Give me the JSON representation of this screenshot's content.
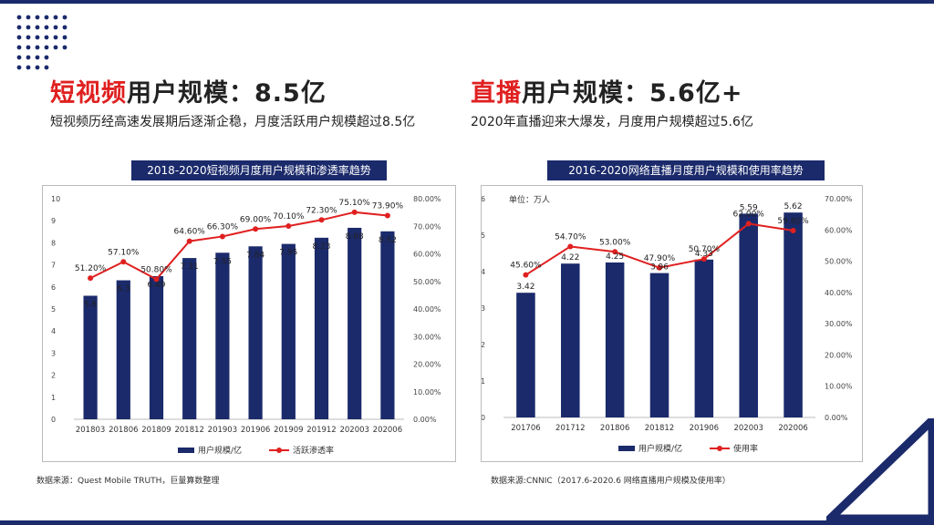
{
  "colors": {
    "bar": "#1b2a6b",
    "line": "#e02020",
    "accent": "#1b2a6b"
  },
  "left": {
    "title_red": "短视频",
    "title_dark": "用户规模：8.5亿",
    "subtitle": "短视频历经高速发展期后逐渐企稳，月度活跃用户规模超过8.5亿",
    "source": "数据来源：Quest Mobile TRUTH，巨量算数整理"
  },
  "right": {
    "title_red": "直播",
    "title_dark": "用户规模：5.6亿+",
    "subtitle": "2020年直播迎来大爆发，月度用户规模超过5.6亿",
    "source": "数据来源:CNNIC（2017.6-2020.6 网络直播用户规模及使用率）"
  },
  "chart_data": [
    {
      "type": "bar+line",
      "title": "2018-2020短视频月度用户规模和渗透率趋势",
      "unit_note": "",
      "categories": [
        "201803",
        "201806",
        "201809",
        "201812",
        "201903",
        "201906",
        "201909",
        "201912",
        "202003",
        "202006"
      ],
      "series": [
        {
          "name": "用户规模/亿",
          "type": "bar",
          "axis": "left",
          "values": [
            5.6,
            6.3,
            6.49,
            7.31,
            7.55,
            7.84,
            7.95,
            8.23,
            8.68,
            8.52
          ],
          "labels": [
            "5.6",
            "6.3",
            "6.49",
            "7.31",
            "7.55",
            "7.84",
            "7.95",
            "8.23",
            "8.68",
            "8.52"
          ]
        },
        {
          "name": "活跃渗透率",
          "type": "line",
          "axis": "right",
          "values": [
            51.2,
            57.1,
            50.8,
            64.6,
            66.3,
            69.0,
            70.1,
            72.3,
            75.1,
            73.9
          ],
          "labels": [
            "51.20%",
            "57.10%",
            "50.80%",
            "64.60%",
            "66.30%",
            "69.00%",
            "70.10%",
            "72.30%",
            "75.10%",
            "73.90%"
          ]
        }
      ],
      "y_left": {
        "min": 0,
        "max": 10,
        "ticks": [
          "0",
          "1",
          "2",
          "3",
          "4",
          "5",
          "6",
          "7",
          "8",
          "9",
          "10"
        ]
      },
      "y_right": {
        "min": 0,
        "max": 80,
        "ticks": [
          "0.00%",
          "10.00%",
          "20.00%",
          "30.00%",
          "40.00%",
          "50.00%",
          "60.00%",
          "70.00%",
          "80.00%"
        ]
      },
      "legend": [
        "用户规模/亿",
        "活跃渗透率"
      ]
    },
    {
      "type": "bar+line",
      "title": "2016-2020网络直播月度用户规模和使用率趋势",
      "unit_note": "单位：万人",
      "categories": [
        "201706",
        "201712",
        "201806",
        "201812",
        "201906",
        "202003",
        "202006"
      ],
      "series": [
        {
          "name": "用户规模/亿",
          "type": "bar",
          "axis": "left",
          "values": [
            3.42,
            4.22,
            4.25,
            3.96,
            4.33,
            5.59,
            5.62
          ],
          "labels": [
            "3.42",
            "4.22",
            "4.25",
            "3.96",
            "4.33",
            "5.59",
            "5.62"
          ]
        },
        {
          "name": "使用率",
          "type": "line",
          "axis": "right",
          "values": [
            45.6,
            54.7,
            53.0,
            47.9,
            50.7,
            62.0,
            59.8
          ],
          "labels": [
            "45.60%",
            "54.70%",
            "53.00%",
            "47.90%",
            "50.70%",
            "62.00%",
            "59.80%"
          ]
        }
      ],
      "y_left": {
        "min": 0,
        "max": 6,
        "ticks": [
          "0",
          "1",
          "2",
          "3",
          "4",
          "5",
          "6"
        ]
      },
      "y_right": {
        "min": 0,
        "max": 70,
        "ticks": [
          "0.00%",
          "10.00%",
          "20.00%",
          "30.00%",
          "40.00%",
          "50.00%",
          "60.00%",
          "70.00%"
        ]
      },
      "legend": [
        "用户规模/亿",
        "使用率"
      ]
    }
  ]
}
